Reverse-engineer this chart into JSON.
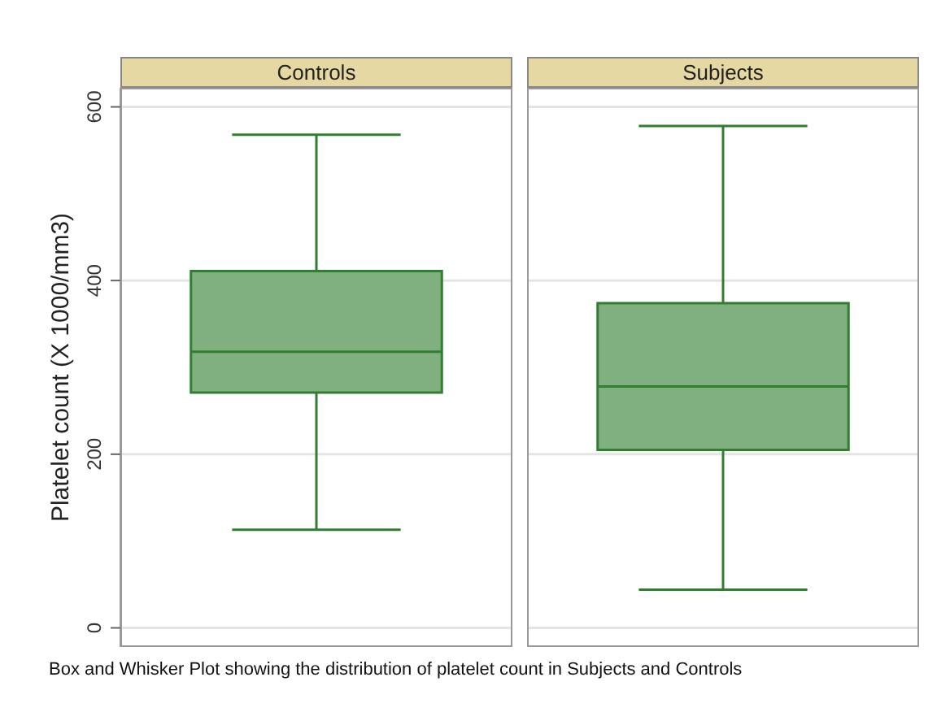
{
  "chart_data": {
    "type": "box",
    "ylabel": "Platelet count (X 1000/mm3)",
    "categories": [
      "Controls",
      "Subjects"
    ],
    "boxes": [
      {
        "low": 113,
        "q1": 271,
        "median": 318,
        "q3": 411,
        "high": 568
      },
      {
        "low": 44,
        "q1": 205,
        "median": 278,
        "q3": 374,
        "high": 578
      }
    ],
    "colors": [
      "#80b080",
      "#80b080"
    ],
    "ylim": [
      -22,
      622
    ],
    "yticks": [
      0,
      200,
      400,
      600
    ],
    "grid": "y",
    "annotations": [
      "Box and Whisker Plot showing the distribution of platelet count in Subjects and Controls"
    ]
  }
}
